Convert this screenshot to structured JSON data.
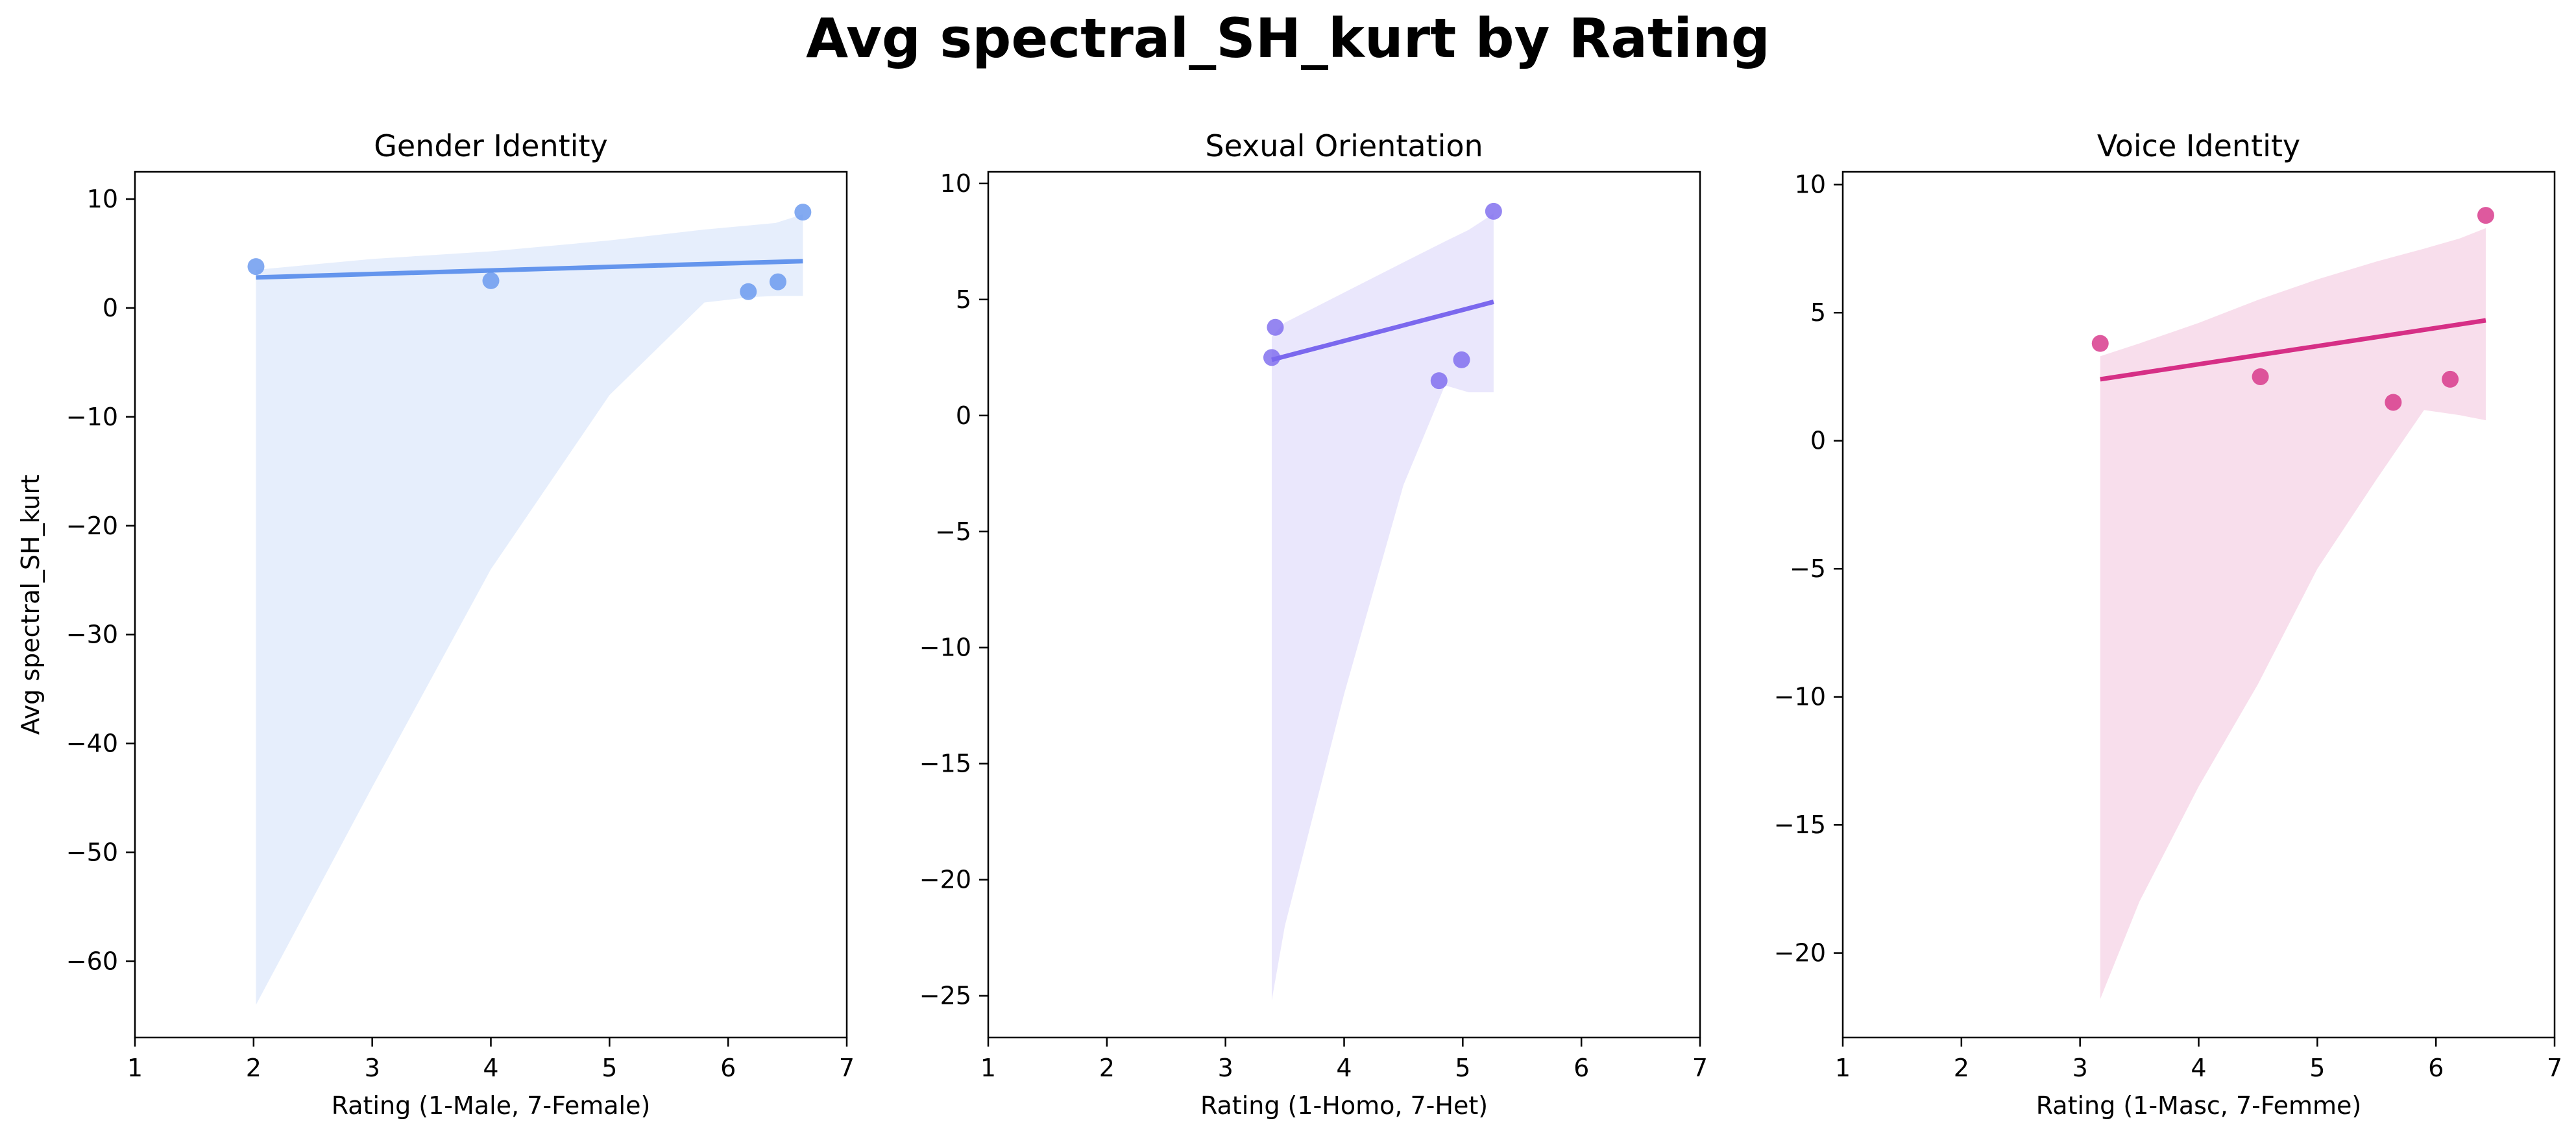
{
  "figure": {
    "title": "Avg spectral_SH_kurt by Rating"
  },
  "chart_data": [
    {
      "type": "scatter",
      "title": "Gender Identity",
      "xlabel": "Rating (1-Male, 7-Female)",
      "ylabel": "Avg spectral_SH_kurt",
      "xlim": [
        1,
        7
      ],
      "ylim": [
        -67,
        12.5
      ],
      "xticks": [
        1,
        2,
        3,
        4,
        5,
        6,
        7
      ],
      "yticks": [
        10,
        0,
        -10,
        -20,
        -30,
        -40,
        -50,
        -60
      ],
      "color": "#6495ED",
      "points": [
        {
          "x": 2.02,
          "y": 3.8
        },
        {
          "x": 4.0,
          "y": 2.5
        },
        {
          "x": 6.17,
          "y": 1.5
        },
        {
          "x": 6.42,
          "y": 2.4
        },
        {
          "x": 6.63,
          "y": 8.8
        }
      ],
      "regression": {
        "x": [
          2.02,
          6.63
        ],
        "y": [
          2.8,
          4.3
        ]
      },
      "ci_band": {
        "x": [
          2.02,
          3.0,
          4.0,
          5.0,
          5.8,
          6.2,
          6.4,
          6.63
        ],
        "upper": [
          3.5,
          4.5,
          5.2,
          6.2,
          7.2,
          7.6,
          7.8,
          8.6
        ],
        "lower": [
          -64,
          -44,
          -24,
          -8,
          0.5,
          1.0,
          1.1,
          1.1
        ]
      }
    },
    {
      "type": "scatter",
      "title": "Sexual Orientation",
      "xlabel": "Rating (1-Homo, 7-Het)",
      "ylabel": "",
      "xlim": [
        1,
        7
      ],
      "ylim": [
        -26.8,
        10.5
      ],
      "xticks": [
        1,
        2,
        3,
        4,
        5,
        6,
        7
      ],
      "yticks": [
        10,
        5,
        0,
        -5,
        -10,
        -15,
        -20,
        -25
      ],
      "color": "#7B68EE",
      "points": [
        {
          "x": 3.39,
          "y": 2.5
        },
        {
          "x": 3.42,
          "y": 3.8
        },
        {
          "x": 4.8,
          "y": 1.5
        },
        {
          "x": 4.99,
          "y": 2.4
        },
        {
          "x": 5.26,
          "y": 8.8
        }
      ],
      "regression": {
        "x": [
          3.39,
          5.26
        ],
        "y": [
          2.4,
          4.9
        ]
      },
      "ci_band": {
        "x": [
          3.39,
          3.5,
          4.0,
          4.5,
          4.85,
          5.05,
          5.26
        ],
        "upper": [
          3.4,
          4.0,
          5.3,
          6.6,
          7.5,
          8.0,
          8.7
        ],
        "lower": [
          -25.2,
          -22,
          -12,
          -3,
          1.3,
          1.0,
          1.0
        ]
      }
    },
    {
      "type": "scatter",
      "title": "Voice Identity",
      "xlabel": "Rating (1-Masc, 7-Femme)",
      "ylabel": "",
      "xlim": [
        1,
        7
      ],
      "ylim": [
        -23.3,
        10.5
      ],
      "xticks": [
        1,
        2,
        3,
        4,
        5,
        6,
        7
      ],
      "yticks": [
        10,
        5,
        0,
        -5,
        -10,
        -15,
        -20
      ],
      "color": "#D62F86",
      "points": [
        {
          "x": 3.17,
          "y": 3.8
        },
        {
          "x": 4.52,
          "y": 2.5
        },
        {
          "x": 5.64,
          "y": 1.5
        },
        {
          "x": 6.12,
          "y": 2.4
        },
        {
          "x": 6.42,
          "y": 8.8
        }
      ],
      "regression": {
        "x": [
          3.17,
          6.42
        ],
        "y": [
          2.4,
          4.7
        ]
      },
      "ci_band": {
        "x": [
          3.17,
          3.5,
          4.0,
          4.5,
          5.0,
          5.5,
          5.9,
          6.2,
          6.42
        ],
        "upper": [
          3.3,
          3.8,
          4.6,
          5.5,
          6.3,
          7.0,
          7.5,
          7.9,
          8.3
        ],
        "lower": [
          -21.8,
          -18,
          -13.5,
          -9.5,
          -5,
          -1.5,
          1.2,
          1.0,
          0.8
        ]
      }
    }
  ]
}
